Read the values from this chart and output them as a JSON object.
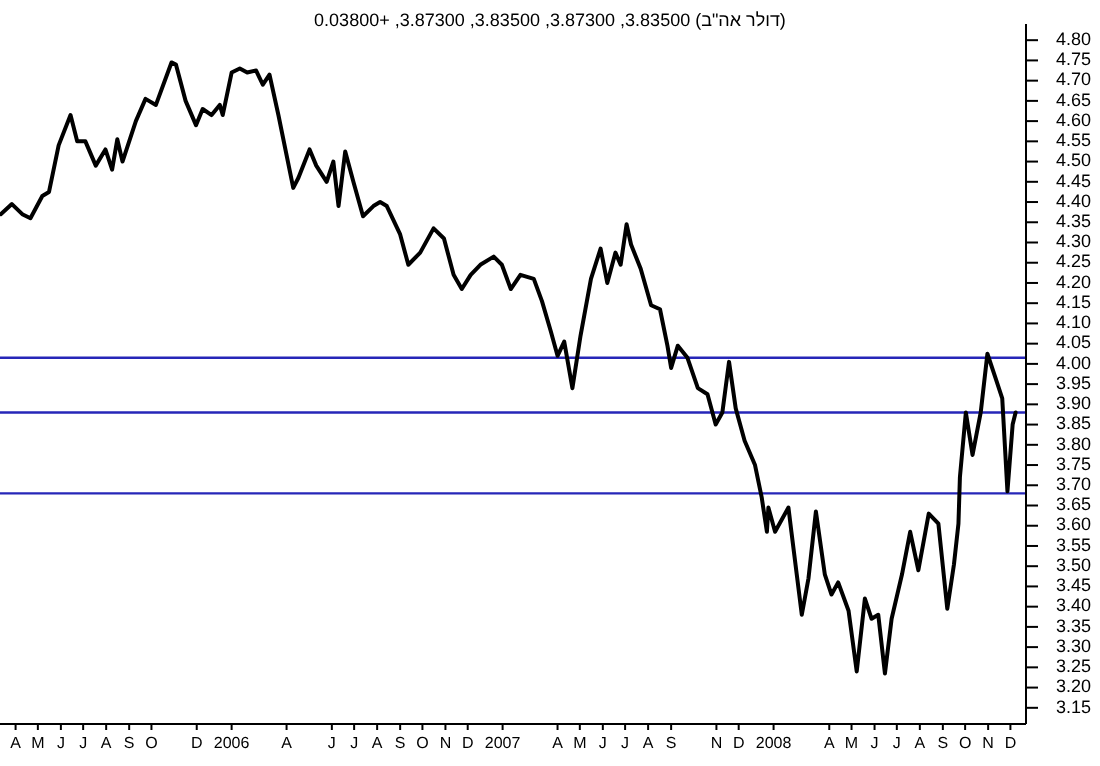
{
  "chart_data": {
    "type": "line",
    "title": "(דולר אה\"ב) 3.83500, 3.87300, 3.83500, 3.87300, +0.03800",
    "x": [
      "2005-03-26",
      "2005-04-10",
      "2005-04-24",
      "2005-05-05",
      "2005-05-21",
      "2005-05-30",
      "2005-06-12",
      "2005-06-28",
      "2005-07-07",
      "2005-07-18",
      "2005-08-01",
      "2005-08-14",
      "2005-08-23",
      "2005-08-30",
      "2005-09-06",
      "2005-09-24",
      "2005-10-07",
      "2005-10-21",
      "2005-11-11",
      "2005-11-17",
      "2005-11-30",
      "2005-12-14",
      "2005-12-23",
      "2006-01-04",
      "2006-01-15",
      "2006-01-19",
      "2006-01-31",
      "2006-02-11",
      "2006-02-21",
      "2006-03-05",
      "2006-03-14",
      "2006-03-23",
      "2006-04-04",
      "2006-04-24",
      "2006-05-01",
      "2006-05-16",
      "2006-05-25",
      "2006-06-08",
      "2006-06-17",
      "2006-06-24",
      "2006-07-03",
      "2006-07-14",
      "2006-07-27",
      "2006-08-10",
      "2006-08-19",
      "2006-08-28",
      "2006-09-15",
      "2006-09-26",
      "2006-10-12",
      "2006-10-30",
      "2006-11-13",
      "2006-11-26",
      "2006-12-07",
      "2006-12-19",
      "2007-01-01",
      "2007-01-19",
      "2007-01-30",
      "2007-02-11",
      "2007-02-24",
      "2007-03-14",
      "2007-03-25",
      "2007-04-06",
      "2007-04-15",
      "2007-04-24",
      "2007-05-05",
      "2007-05-16",
      "2007-05-30",
      "2007-06-12",
      "2007-06-21",
      "2007-07-02",
      "2007-07-09",
      "2007-07-17",
      "2007-07-23",
      "2007-08-05",
      "2007-08-19",
      "2007-08-31",
      "2007-09-10",
      "2007-09-15",
      "2007-09-24",
      "2007-10-07",
      "2007-10-21",
      "2007-11-03",
      "2007-11-14",
      "2007-11-23",
      "2007-12-02",
      "2007-12-11",
      "2007-12-23",
      "2008-01-06",
      "2008-01-15",
      "2008-01-22",
      "2008-01-24",
      "2008-02-02",
      "2008-02-20",
      "2008-02-24",
      "2008-03-09",
      "2008-03-18",
      "2008-03-28",
      "2008-04-09",
      "2008-04-18",
      "2008-04-27",
      "2008-05-11",
      "2008-05-22",
      "2008-06-02",
      "2008-06-11",
      "2008-06-20",
      "2008-06-29",
      "2008-07-08",
      "2008-07-22",
      "2008-08-02",
      "2008-08-13",
      "2008-08-27",
      "2008-09-09",
      "2008-09-21",
      "2008-09-30",
      "2008-10-06",
      "2008-10-08",
      "2008-10-16",
      "2008-10-25",
      "2008-11-05",
      "2008-11-14",
      "2008-11-25",
      "2008-12-04",
      "2008-12-11",
      "2008-12-18",
      "2008-12-22"
    ],
    "series": [
      {
        "color": "#000000",
        "values": [
          4.37,
          4.395,
          4.37,
          4.36,
          4.415,
          4.425,
          4.54,
          4.615,
          4.55,
          4.55,
          4.49,
          4.53,
          4.48,
          4.555,
          4.5,
          4.6,
          4.655,
          4.64,
          4.745,
          4.74,
          4.65,
          4.59,
          4.63,
          4.615,
          4.64,
          4.615,
          4.72,
          4.73,
          4.72,
          4.725,
          4.69,
          4.715,
          4.615,
          4.435,
          4.46,
          4.53,
          4.49,
          4.45,
          4.5,
          4.39,
          4.525,
          4.45,
          4.365,
          4.39,
          4.4,
          4.39,
          4.32,
          4.245,
          4.275,
          4.335,
          4.31,
          4.22,
          4.185,
          4.22,
          4.245,
          4.265,
          4.245,
          4.185,
          4.22,
          4.21,
          4.155,
          4.08,
          4.02,
          4.055,
          3.94,
          4.07,
          4.21,
          4.285,
          4.2,
          4.275,
          4.245,
          4.345,
          4.295,
          4.235,
          4.145,
          4.135,
          4.045,
          3.99,
          4.045,
          4.015,
          3.94,
          3.925,
          3.85,
          3.88,
          4.005,
          3.89,
          3.81,
          3.75,
          3.67,
          3.585,
          3.645,
          3.585,
          3.645,
          3.585,
          3.38,
          3.47,
          3.635,
          3.48,
          3.43,
          3.46,
          3.39,
          3.24,
          3.42,
          3.37,
          3.38,
          3.235,
          3.37,
          3.48,
          3.585,
          3.49,
          3.63,
          3.605,
          3.395,
          3.505,
          3.605,
          3.72,
          3.88,
          3.775,
          3.88,
          4.025,
          3.965,
          3.915,
          3.685,
          3.85,
          3.88
        ]
      }
    ],
    "xlim": [
      "2005-03-25",
      "2009-01-05"
    ],
    "xticks": [
      {
        "value": "2005-04-15",
        "label": "A"
      },
      {
        "value": "2005-05-15",
        "label": "M"
      },
      {
        "value": "2005-06-15",
        "label": "J"
      },
      {
        "value": "2005-07-15",
        "label": "J"
      },
      {
        "value": "2005-08-15",
        "label": "A"
      },
      {
        "value": "2005-09-15",
        "label": "S"
      },
      {
        "value": "2005-10-15",
        "label": "O"
      },
      {
        "value": "2005-12-15",
        "label": "D"
      },
      {
        "value": "2006-01-31",
        "label": "2006"
      },
      {
        "value": "2006-04-15",
        "label": "A"
      },
      {
        "value": "2006-06-15",
        "label": "J"
      },
      {
        "value": "2006-07-15",
        "label": "J"
      },
      {
        "value": "2006-08-15",
        "label": "A"
      },
      {
        "value": "2006-09-15",
        "label": "S"
      },
      {
        "value": "2006-10-15",
        "label": "O"
      },
      {
        "value": "2006-11-15",
        "label": "N"
      },
      {
        "value": "2006-12-15",
        "label": "D"
      },
      {
        "value": "2007-01-31",
        "label": "2007"
      },
      {
        "value": "2007-04-15",
        "label": "A"
      },
      {
        "value": "2007-05-15",
        "label": "M"
      },
      {
        "value": "2007-06-15",
        "label": "J"
      },
      {
        "value": "2007-07-15",
        "label": "J"
      },
      {
        "value": "2007-08-15",
        "label": "A"
      },
      {
        "value": "2007-09-15",
        "label": "S"
      },
      {
        "value": "2007-11-15",
        "label": "N"
      },
      {
        "value": "2007-12-15",
        "label": "D"
      },
      {
        "value": "2008-01-31",
        "label": "2008"
      },
      {
        "value": "2008-04-15",
        "label": "A"
      },
      {
        "value": "2008-05-15",
        "label": "M"
      },
      {
        "value": "2008-06-15",
        "label": "J"
      },
      {
        "value": "2008-07-15",
        "label": "J"
      },
      {
        "value": "2008-08-15",
        "label": "A"
      },
      {
        "value": "2008-09-15",
        "label": "S"
      },
      {
        "value": "2008-10-15",
        "label": "O"
      },
      {
        "value": "2008-11-15",
        "label": "N"
      },
      {
        "value": "2008-12-15",
        "label": "D"
      }
    ],
    "ylim": [
      3.11,
      4.84
    ],
    "yticks": [
      {
        "value": 4.8,
        "label": "4.80"
      },
      {
        "value": 4.75,
        "label": "4.75"
      },
      {
        "value": 4.7,
        "label": "4.70"
      },
      {
        "value": 4.65,
        "label": "4.65"
      },
      {
        "value": 4.6,
        "label": "4.60"
      },
      {
        "value": 4.55,
        "label": "4.55"
      },
      {
        "value": 4.5,
        "label": "4.50"
      },
      {
        "value": 4.45,
        "label": "4.45"
      },
      {
        "value": 4.4,
        "label": "4.40"
      },
      {
        "value": 4.35,
        "label": "4.35"
      },
      {
        "value": 4.3,
        "label": "4.30"
      },
      {
        "value": 4.25,
        "label": "4.25"
      },
      {
        "value": 4.2,
        "label": "4.20"
      },
      {
        "value": 4.15,
        "label": "4.15"
      },
      {
        "value": 4.1,
        "label": "4.10"
      },
      {
        "value": 4.05,
        "label": "4.05"
      },
      {
        "value": 4.0,
        "label": "4.00"
      },
      {
        "value": 3.95,
        "label": "3.95"
      },
      {
        "value": 3.9,
        "label": "3.90"
      },
      {
        "value": 3.85,
        "label": "3.85"
      },
      {
        "value": 3.8,
        "label": "3.80"
      },
      {
        "value": 3.75,
        "label": "3.75"
      },
      {
        "value": 3.7,
        "label": "3.70"
      },
      {
        "value": 3.65,
        "label": "3.65"
      },
      {
        "value": 3.6,
        "label": "3.60"
      },
      {
        "value": 3.55,
        "label": "3.55"
      },
      {
        "value": 3.5,
        "label": "3.50"
      },
      {
        "value": 3.45,
        "label": "3.45"
      },
      {
        "value": 3.4,
        "label": "3.40"
      },
      {
        "value": 3.35,
        "label": "3.35"
      },
      {
        "value": 3.3,
        "label": "3.30"
      },
      {
        "value": 3.25,
        "label": "3.25"
      },
      {
        "value": 3.2,
        "label": "3.20"
      },
      {
        "value": 3.15,
        "label": "3.15"
      }
    ],
    "ref_lines": [
      {
        "axis": "y",
        "value": 4.015,
        "color": "#2626b8"
      },
      {
        "axis": "y",
        "value": 3.88,
        "color": "#2626b8"
      },
      {
        "axis": "y",
        "value": 3.68,
        "color": "#2626b8"
      }
    ]
  }
}
